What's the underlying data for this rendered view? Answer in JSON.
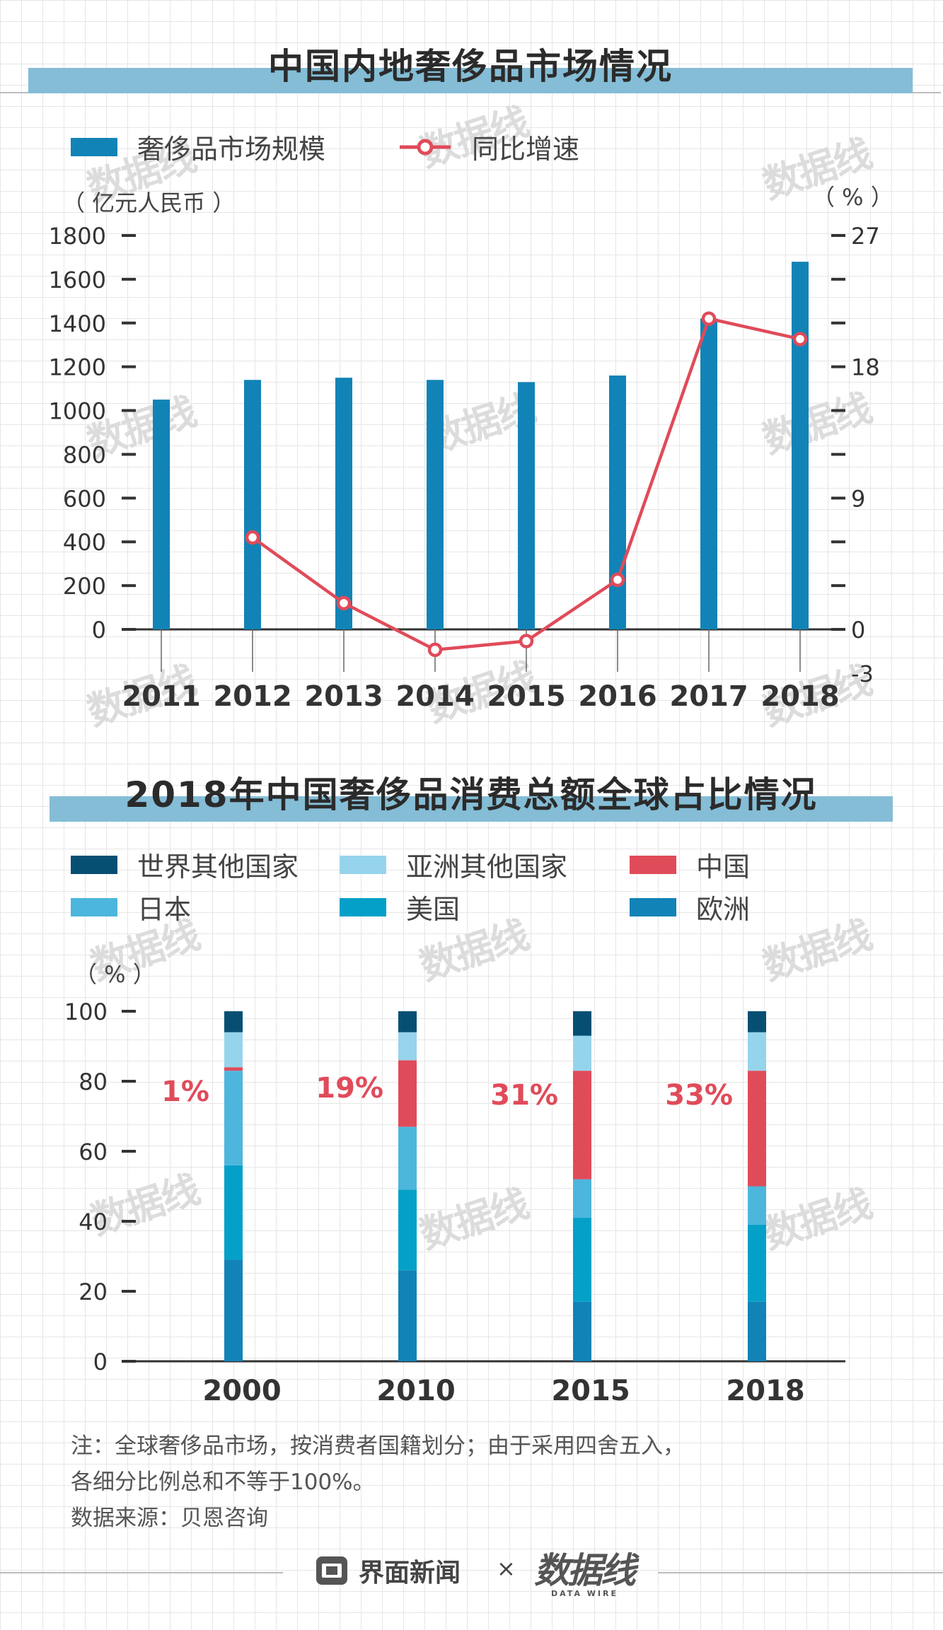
{
  "chart_data": [
    {
      "type": "bar+line",
      "title": "中国内地奢侈品市场情况",
      "legend": {
        "bar": "奢侈品市场规模",
        "line": "同比增速"
      },
      "left_unit": "（ 亿元人民币 ）",
      "right_unit": "（ % ）",
      "categories": [
        "2011",
        "2012",
        "2013",
        "2014",
        "2015",
        "2016",
        "2017",
        "2018"
      ],
      "bar_values": [
        1050,
        1140,
        1150,
        1140,
        1130,
        1160,
        1420,
        1680
      ],
      "line_values": [
        null,
        6.3,
        1.8,
        -1.4,
        -0.8,
        3.4,
        21.3,
        19.9
      ],
      "left_ylim": [
        0,
        1800
      ],
      "left_ticks": [
        "0",
        "200",
        "400",
        "600",
        "800",
        "1000",
        "1200",
        "1400",
        "1600",
        "1800"
      ],
      "right_ylim": [
        -3,
        27
      ],
      "right_ticks": [
        "-3",
        "0",
        "9",
        "18",
        "27"
      ],
      "colors": {
        "bar": "#1283b6",
        "line": "#e04b5a"
      }
    },
    {
      "type": "stacked-bar",
      "title": "2018年中国奢侈品消费总额全球占比情况",
      "unit": "（ % ）",
      "categories": [
        "2000",
        "2010",
        "2015",
        "2018"
      ],
      "ylim": [
        0,
        100
      ],
      "y_ticks": [
        "0",
        "20",
        "40",
        "60",
        "80",
        "100"
      ],
      "series": [
        {
          "name": "欧洲",
          "color": "#1283b6",
          "values": [
            29,
            26,
            17,
            17
          ]
        },
        {
          "name": "美国",
          "color": "#05a0c8",
          "values": [
            27,
            23,
            24,
            22
          ]
        },
        {
          "name": "日本",
          "color": "#4db6dc",
          "values": [
            27,
            18,
            11,
            11
          ]
        },
        {
          "name": "中国",
          "color": "#e04b5a",
          "values": [
            1,
            19,
            31,
            33
          ]
        },
        {
          "name": "亚洲其他国家",
          "color": "#96d4ec",
          "values": [
            10,
            8,
            10,
            11
          ]
        },
        {
          "name": "世界其他国家",
          "color": "#064f73",
          "values": [
            6,
            6,
            7,
            6
          ]
        }
      ],
      "china_labels": [
        "1%",
        "19%",
        "31%",
        "33%"
      ]
    }
  ],
  "notes": {
    "line1": "注：全球奢侈品市场，按消费者国籍划分；由于采用四舍五入，",
    "line2": "各细分比例总和不等于100%。",
    "source": "数据来源：贝恩咨询"
  },
  "footer": {
    "brand1": "界面新闻",
    "cross": "×",
    "brand2": "数据线",
    "brand2_sub": "DATA WIRE"
  },
  "watermark": "数据线"
}
